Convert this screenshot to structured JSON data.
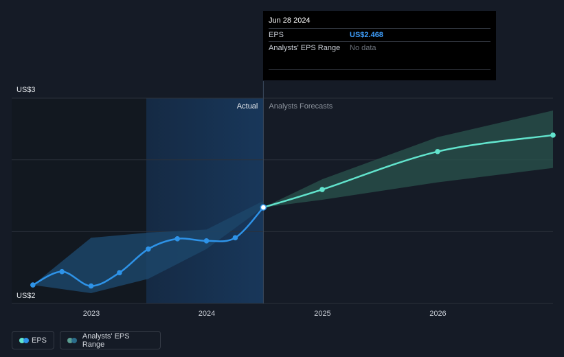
{
  "tooltip": {
    "date": "Jun 28 2024",
    "eps_label": "EPS",
    "eps_value": "US$2.468",
    "range_label": "Analysts' EPS Range",
    "range_value": "No data"
  },
  "section_labels": {
    "actual": "Actual",
    "forecast": "Analysts Forecasts"
  },
  "legend": {
    "eps": "EPS",
    "range": "Analysts' EPS Range"
  },
  "colors": {
    "background": "#151b26",
    "eps_actual": "#2e93e8",
    "eps_forecast": "#62e4cd",
    "forecast_band": "#2a544e",
    "actual_band": "#1c4569"
  },
  "chart_data": {
    "type": "line",
    "x_axis": {
      "ticks": [
        "2023",
        "2024",
        "2025",
        "2026"
      ]
    },
    "y_axis": {
      "labels": [
        "US$2",
        "US$3"
      ],
      "ylim": [
        2.0,
        3.0
      ]
    },
    "grid": true,
    "series": [
      {
        "name": "EPS",
        "segment": "actual",
        "points": [
          {
            "x": "2022-06-30",
            "y": 2.09
          },
          {
            "x": "2022-09-30",
            "y": 2.155
          },
          {
            "x": "2022-12-31",
            "y": 2.085
          },
          {
            "x": "2023-03-31",
            "y": 2.15
          },
          {
            "x": "2023-06-30",
            "y": 2.265
          },
          {
            "x": "2023-09-30",
            "y": 2.315
          },
          {
            "x": "2023-12-31",
            "y": 2.305
          },
          {
            "x": "2024-03-31",
            "y": 2.32
          },
          {
            "x": "2024-06-28",
            "y": 2.468
          }
        ]
      },
      {
        "name": "EPS",
        "segment": "forecast",
        "points": [
          {
            "x": "2024-06-28",
            "y": 2.468
          },
          {
            "x": "2024-12-31",
            "y": 2.555
          },
          {
            "x": "2025-12-31",
            "y": 2.74
          },
          {
            "x": "2026-12-31",
            "y": 2.82
          }
        ]
      }
    ],
    "bands": [
      {
        "name": "Analysts' EPS Range",
        "segment": "actual",
        "points": [
          {
            "x": "2022-06-30",
            "low": 2.09,
            "high": 2.09
          },
          {
            "x": "2022-12-31",
            "low": 2.05,
            "high": 2.32
          },
          {
            "x": "2023-06-30",
            "low": 2.12,
            "high": 2.345
          },
          {
            "x": "2023-12-31",
            "low": 2.265,
            "high": 2.36
          },
          {
            "x": "2024-06-28",
            "low": 2.468,
            "high": 2.5
          }
        ]
      },
      {
        "name": "Analysts' EPS Range",
        "segment": "forecast",
        "points": [
          {
            "x": "2024-06-28",
            "low": 2.468,
            "high": 2.468
          },
          {
            "x": "2024-12-31",
            "low": 2.505,
            "high": 2.605
          },
          {
            "x": "2025-12-31",
            "low": 2.59,
            "high": 2.81
          },
          {
            "x": "2026-12-31",
            "low": 2.66,
            "high": 2.94
          }
        ]
      }
    ]
  }
}
